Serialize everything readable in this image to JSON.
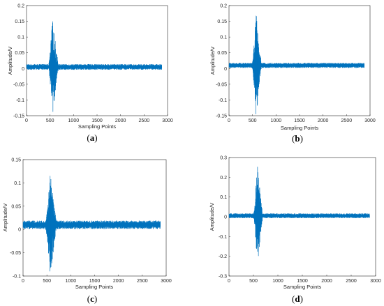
{
  "figure": {
    "colors": {
      "signal": "#0072BD",
      "axis": "#262626",
      "background": "#ffffff"
    }
  },
  "chart_data": [
    {
      "type": "line",
      "caption": "(a)",
      "xlabel": "Sampling Points",
      "ylabel": "Amplitude/V",
      "xlim": [
        0,
        3000
      ],
      "ylim": [
        -0.15,
        0.2
      ],
      "xticks": [
        "0",
        "500",
        "1000",
        "1500",
        "2000",
        "2500",
        "3000"
      ],
      "yticks": [
        "-0.15",
        "-0.1",
        "-0.05",
        "0",
        "0.05",
        "0.1",
        "0.15",
        "0.2"
      ],
      "signal": {
        "n_points": 2880,
        "baseline": 0.005,
        "noise_amp": 0.009,
        "burst_center": 550,
        "burst_max": 0.155,
        "burst_min": -0.14,
        "burst_start": 470,
        "burst_end": 680
      }
    },
    {
      "type": "line",
      "caption": "(b)",
      "xlabel": "Sampling Points",
      "ylabel": "Amplitude/V",
      "xlim": [
        0,
        3000
      ],
      "ylim": [
        -0.15,
        0.2
      ],
      "xticks": [
        "0",
        "500",
        "1000",
        "1500",
        "2000",
        "2500",
        "3000"
      ],
      "yticks": [
        "-0.15",
        "-0.1",
        "-0.05",
        "0",
        "0.05",
        "0.1",
        "0.15",
        "0.2"
      ],
      "signal": {
        "n_points": 2880,
        "baseline": 0.01,
        "noise_amp": 0.008,
        "burst_center": 575,
        "burst_max": 0.175,
        "burst_min": -0.145,
        "burst_start": 490,
        "burst_end": 690
      }
    },
    {
      "type": "line",
      "caption": "(c)",
      "xlabel": "Sampling Points",
      "ylabel": "Amplitude/V",
      "xlim": [
        0,
        3000
      ],
      "ylim": [
        -0.1,
        0.15
      ],
      "xticks": [
        "0",
        "500",
        "1000",
        "1500",
        "2000",
        "2500",
        "3000"
      ],
      "yticks": [
        "-0.1",
        "-0.05",
        "0",
        "0.05",
        "0.1",
        "0.15"
      ],
      "signal": {
        "n_points": 2880,
        "baseline": 0.01,
        "noise_amp": 0.009,
        "burst_center": 570,
        "burst_max": 0.115,
        "burst_min": -0.095,
        "burst_start": 470,
        "burst_end": 700
      }
    },
    {
      "type": "line",
      "caption": "(d)",
      "xlabel": "Sampling Points",
      "ylabel": "Amplitude/V",
      "xlim": [
        0,
        3000
      ],
      "ylim": [
        -0.3,
        0.3
      ],
      "xticks": [
        "0",
        "500",
        "1000",
        "1500",
        "2000",
        "2500",
        "3000"
      ],
      "yticks": [
        "-0.3",
        "-0.2",
        "-0.1",
        "0",
        "0.1",
        "0.2",
        "0.3"
      ],
      "signal": {
        "n_points": 2880,
        "baseline": 0.005,
        "noise_amp": 0.012,
        "burst_center": 580,
        "burst_max": 0.265,
        "burst_min": -0.27,
        "burst_start": 500,
        "burst_end": 690
      }
    }
  ]
}
